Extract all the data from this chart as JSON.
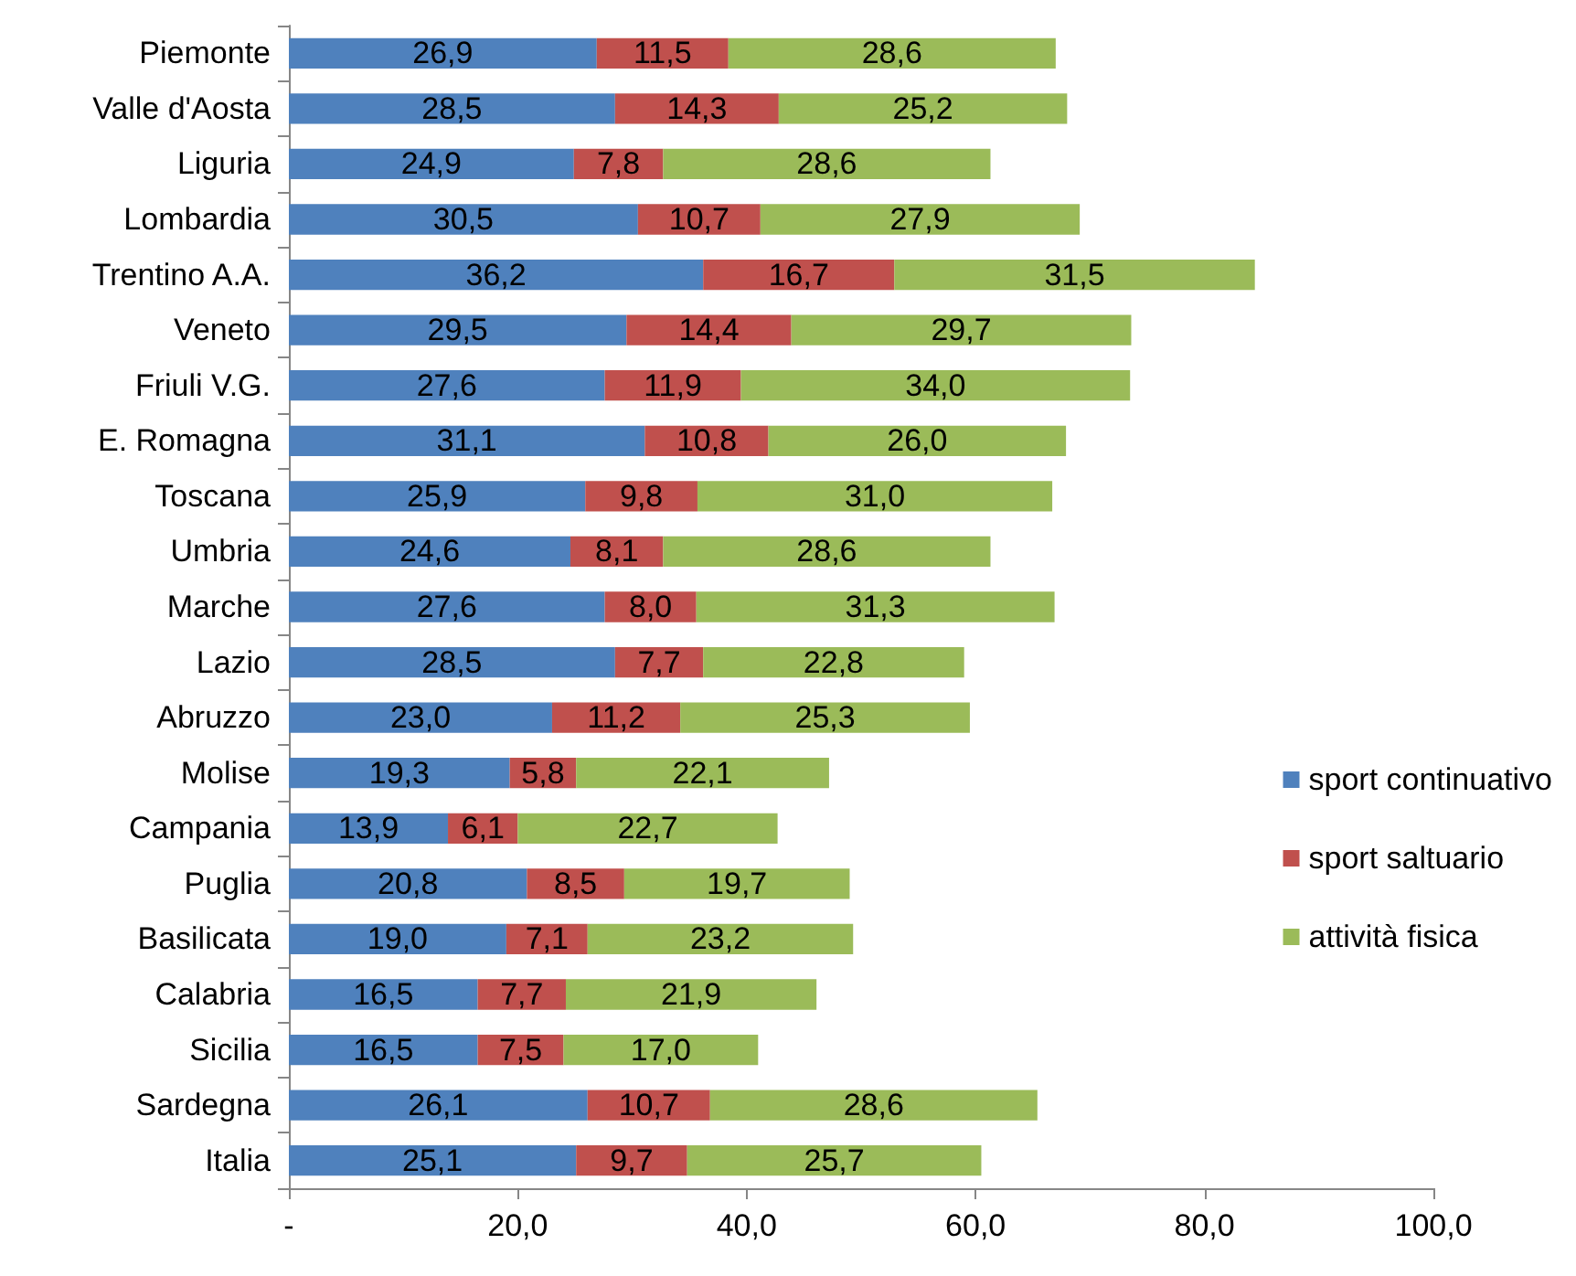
{
  "chart_data": {
    "type": "bar",
    "orientation": "horizontal",
    "stacked": true,
    "legend": "right",
    "grid": false,
    "categories": [
      "Piemonte",
      "Valle d'Aosta",
      "Liguria",
      "Lombardia",
      "Trentino A.A.",
      "Veneto",
      "Friuli V.G.",
      "E. Romagna",
      "Toscana",
      "Umbria",
      "Marche",
      "Lazio",
      "Abruzzo",
      "Molise",
      "Campania",
      "Puglia",
      "Basilicata",
      "Calabria",
      "Sicilia",
      "Sardegna",
      "Italia"
    ],
    "xlim": [
      0,
      100
    ],
    "xticks": [
      {
        "value": 0,
        "label": "-"
      },
      {
        "value": 20,
        "label": "20,0"
      },
      {
        "value": 40,
        "label": "40,0"
      },
      {
        "value": 60,
        "label": "60,0"
      },
      {
        "value": 80,
        "label": "80,0"
      },
      {
        "value": 100,
        "label": "100,0"
      }
    ],
    "series": [
      {
        "name": "sport continuativo",
        "color": "#4f81bd",
        "values": [
          26.9,
          28.5,
          24.9,
          30.5,
          36.2,
          29.5,
          27.6,
          31.1,
          25.9,
          24.6,
          27.6,
          28.5,
          23.0,
          19.3,
          13.9,
          20.8,
          19.0,
          16.5,
          16.5,
          26.1,
          25.1
        ],
        "value_labels": [
          "26,9",
          "28,5",
          "24,9",
          "30,5",
          "36,2",
          "29,5",
          "27,6",
          "31,1",
          "25,9",
          "24,6",
          "27,6",
          "28,5",
          "23,0",
          "19,3",
          "13,9",
          "20,8",
          "19,0",
          "16,5",
          "16,5",
          "26,1",
          "25,1"
        ]
      },
      {
        "name": "sport saltuario",
        "color": "#c0504d",
        "values": [
          11.5,
          14.3,
          7.8,
          10.7,
          16.7,
          14.4,
          11.9,
          10.8,
          9.8,
          8.1,
          8.0,
          7.7,
          11.2,
          5.8,
          6.1,
          8.5,
          7.1,
          7.7,
          7.5,
          10.7,
          9.7
        ],
        "value_labels": [
          "11,5",
          "14,3",
          "7,8",
          "10,7",
          "16,7",
          "14,4",
          "11,9",
          "10,8",
          "9,8",
          "8,1",
          "8,0",
          "7,7",
          "11,2",
          "5,8",
          "6,1",
          "8,5",
          "7,1",
          "7,7",
          "7,5",
          "10,7",
          "9,7"
        ]
      },
      {
        "name": "attività fisica",
        "color": "#9bbb59",
        "values": [
          28.6,
          25.2,
          28.6,
          27.9,
          31.5,
          29.7,
          34.0,
          26.0,
          31.0,
          28.6,
          31.3,
          22.8,
          25.3,
          22.1,
          22.7,
          19.7,
          23.2,
          21.9,
          17.0,
          28.6,
          25.7
        ],
        "value_labels": [
          "28,6",
          "25,2",
          "28,6",
          "27,9",
          "31,5",
          "29,7",
          "34,0",
          "26,0",
          "31,0",
          "28,6",
          "31,3",
          "22,8",
          "25,3",
          "22,1",
          "22,7",
          "19,7",
          "23,2",
          "21,9",
          "17,0",
          "28,6",
          "25,7"
        ]
      }
    ]
  }
}
